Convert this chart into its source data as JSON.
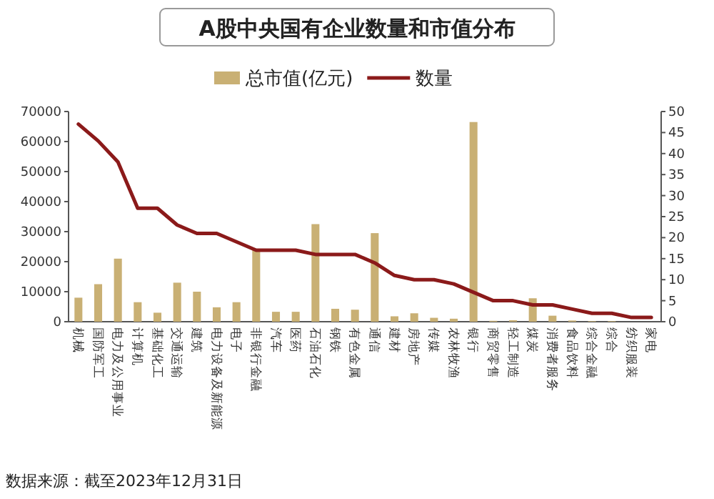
{
  "chart_data": {
    "type": "bar",
    "title": "A股中央国有企业数量和市值分布",
    "categories": [
      "机械",
      "国防军工",
      "电力及公用事业",
      "计算机",
      "基础化工",
      "交通运输",
      "建筑",
      "电力设备及新能源",
      "电子",
      "非银行金融",
      "汽车",
      "医药",
      "石油石化",
      "钢铁",
      "有色金属",
      "通信",
      "建材",
      "房地产",
      "传媒",
      "农林牧渔",
      "银行",
      "商贸零售",
      "轻工制造",
      "煤炭",
      "消费者服务",
      "食品饮料",
      "综合金融",
      "综合",
      "纺织服装",
      "家电"
    ],
    "series": [
      {
        "name": "总市值(亿元)",
        "color": "#c9b074",
        "values": [
          8000,
          12500,
          21000,
          6500,
          3000,
          13000,
          10000,
          4800,
          6500,
          24000,
          3300,
          3300,
          32500,
          4300,
          4000,
          29500,
          1800,
          2800,
          1300,
          1000,
          66500,
          300,
          500,
          7800,
          2000,
          400,
          200,
          200,
          null,
          null
        ]
      },
      {
        "name": "数量",
        "type": "line",
        "axis": "y2",
        "color": "#8b1a1a",
        "values": [
          47,
          43,
          38,
          27,
          27,
          23,
          21,
          21,
          19,
          17,
          17,
          17,
          16,
          16,
          16,
          14,
          11,
          10,
          10,
          9,
          7,
          5,
          5,
          4,
          4,
          3,
          2,
          2,
          1,
          1
        ]
      }
    ],
    "ylim": [
      0,
      70000
    ],
    "yticks": [
      0,
      10000,
      20000,
      30000,
      40000,
      50000,
      60000,
      70000
    ],
    "y2lim": [
      0,
      50
    ],
    "y2ticks": [
      0,
      5,
      10,
      15,
      20,
      25,
      30,
      35,
      40,
      45,
      50
    ],
    "legend": "top",
    "grid": false,
    "annotations": [
      "数据来源：截至2023年12月31日"
    ]
  }
}
